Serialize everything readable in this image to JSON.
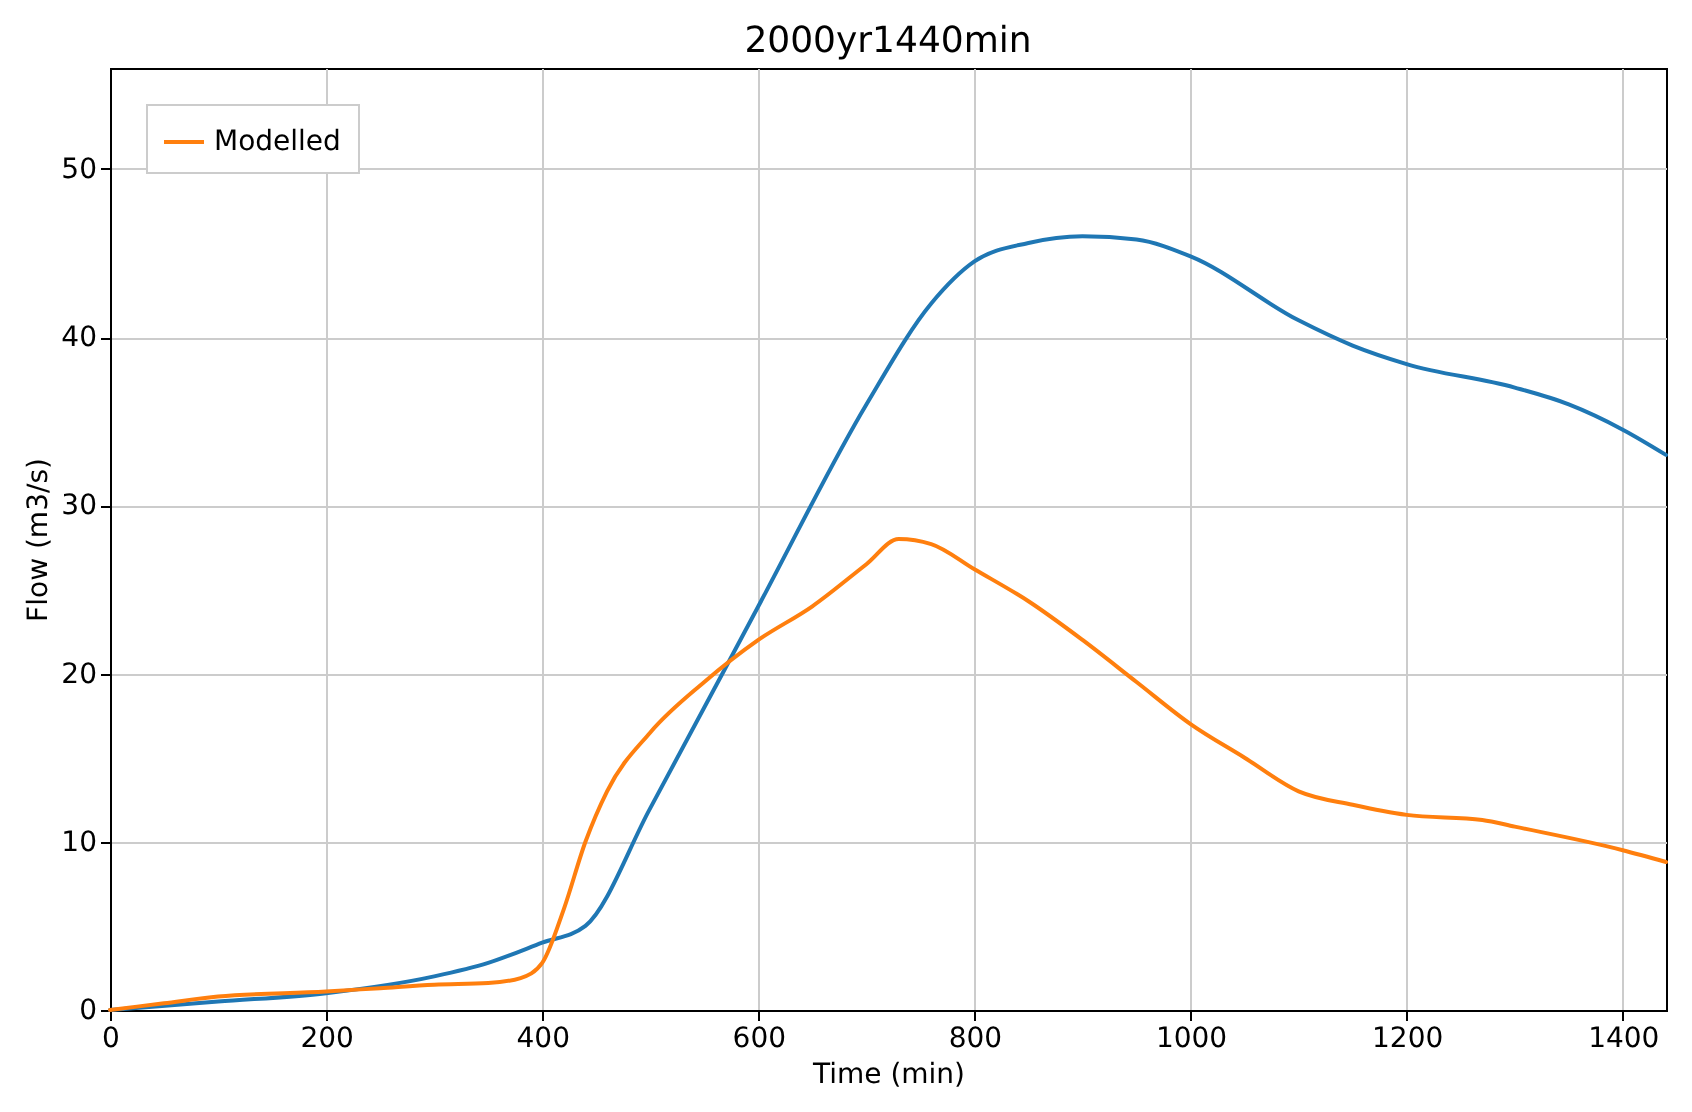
{
  "chart_data": {
    "type": "line",
    "title": "2000yr1440min",
    "xlabel": "Time (min)",
    "ylabel": "Flow (m3/s)",
    "xlim": [
      0,
      1440
    ],
    "xticks": [
      0,
      200,
      400,
      600,
      800,
      1000,
      1200,
      1400
    ],
    "ylim": [
      0,
      56
    ],
    "yticks": [
      0,
      10,
      20,
      30,
      40,
      50
    ],
    "grid": true,
    "legend": "top left",
    "marker": "none",
    "line_style": "solid",
    "series": [
      {
        "color": "#1f77b4",
        "x": [
          0,
          100,
          200,
          300,
          350,
          400,
          440,
          500,
          600,
          700,
          760,
          800,
          850,
          900,
          950,
          1000,
          1100,
          1150,
          1200,
          1300,
          1350,
          1400,
          1440
        ],
        "values": [
          0,
          0.5,
          1,
          2,
          2.8,
          4,
          5,
          12,
          24,
          36,
          42,
          44.5,
          45.6,
          46,
          45.8,
          44.8,
          41,
          39.5,
          38.4,
          37,
          36,
          34.5,
          33
        ]
      },
      {
        "name": "Modelled",
        "color": "#ff7f0e",
        "x": [
          0,
          50,
          100,
          200,
          250,
          300,
          350,
          380,
          400,
          420,
          440,
          460,
          500,
          550,
          600,
          650,
          700,
          730,
          760,
          800,
          850,
          900,
          950,
          1000,
          1050,
          1100,
          1150,
          1200,
          1270,
          1300,
          1400,
          1440
        ],
        "values": [
          0,
          0.4,
          0.8,
          1.1,
          1.3,
          1.5,
          1.6,
          1.9,
          2.8,
          6,
          10,
          13,
          16.5,
          19.5,
          22,
          24,
          26.5,
          28,
          27.7,
          26.2,
          24.3,
          22,
          19.5,
          17,
          15,
          13,
          12.2,
          11.6,
          11.3,
          10.9,
          9.5,
          8.8
        ]
      }
    ]
  }
}
